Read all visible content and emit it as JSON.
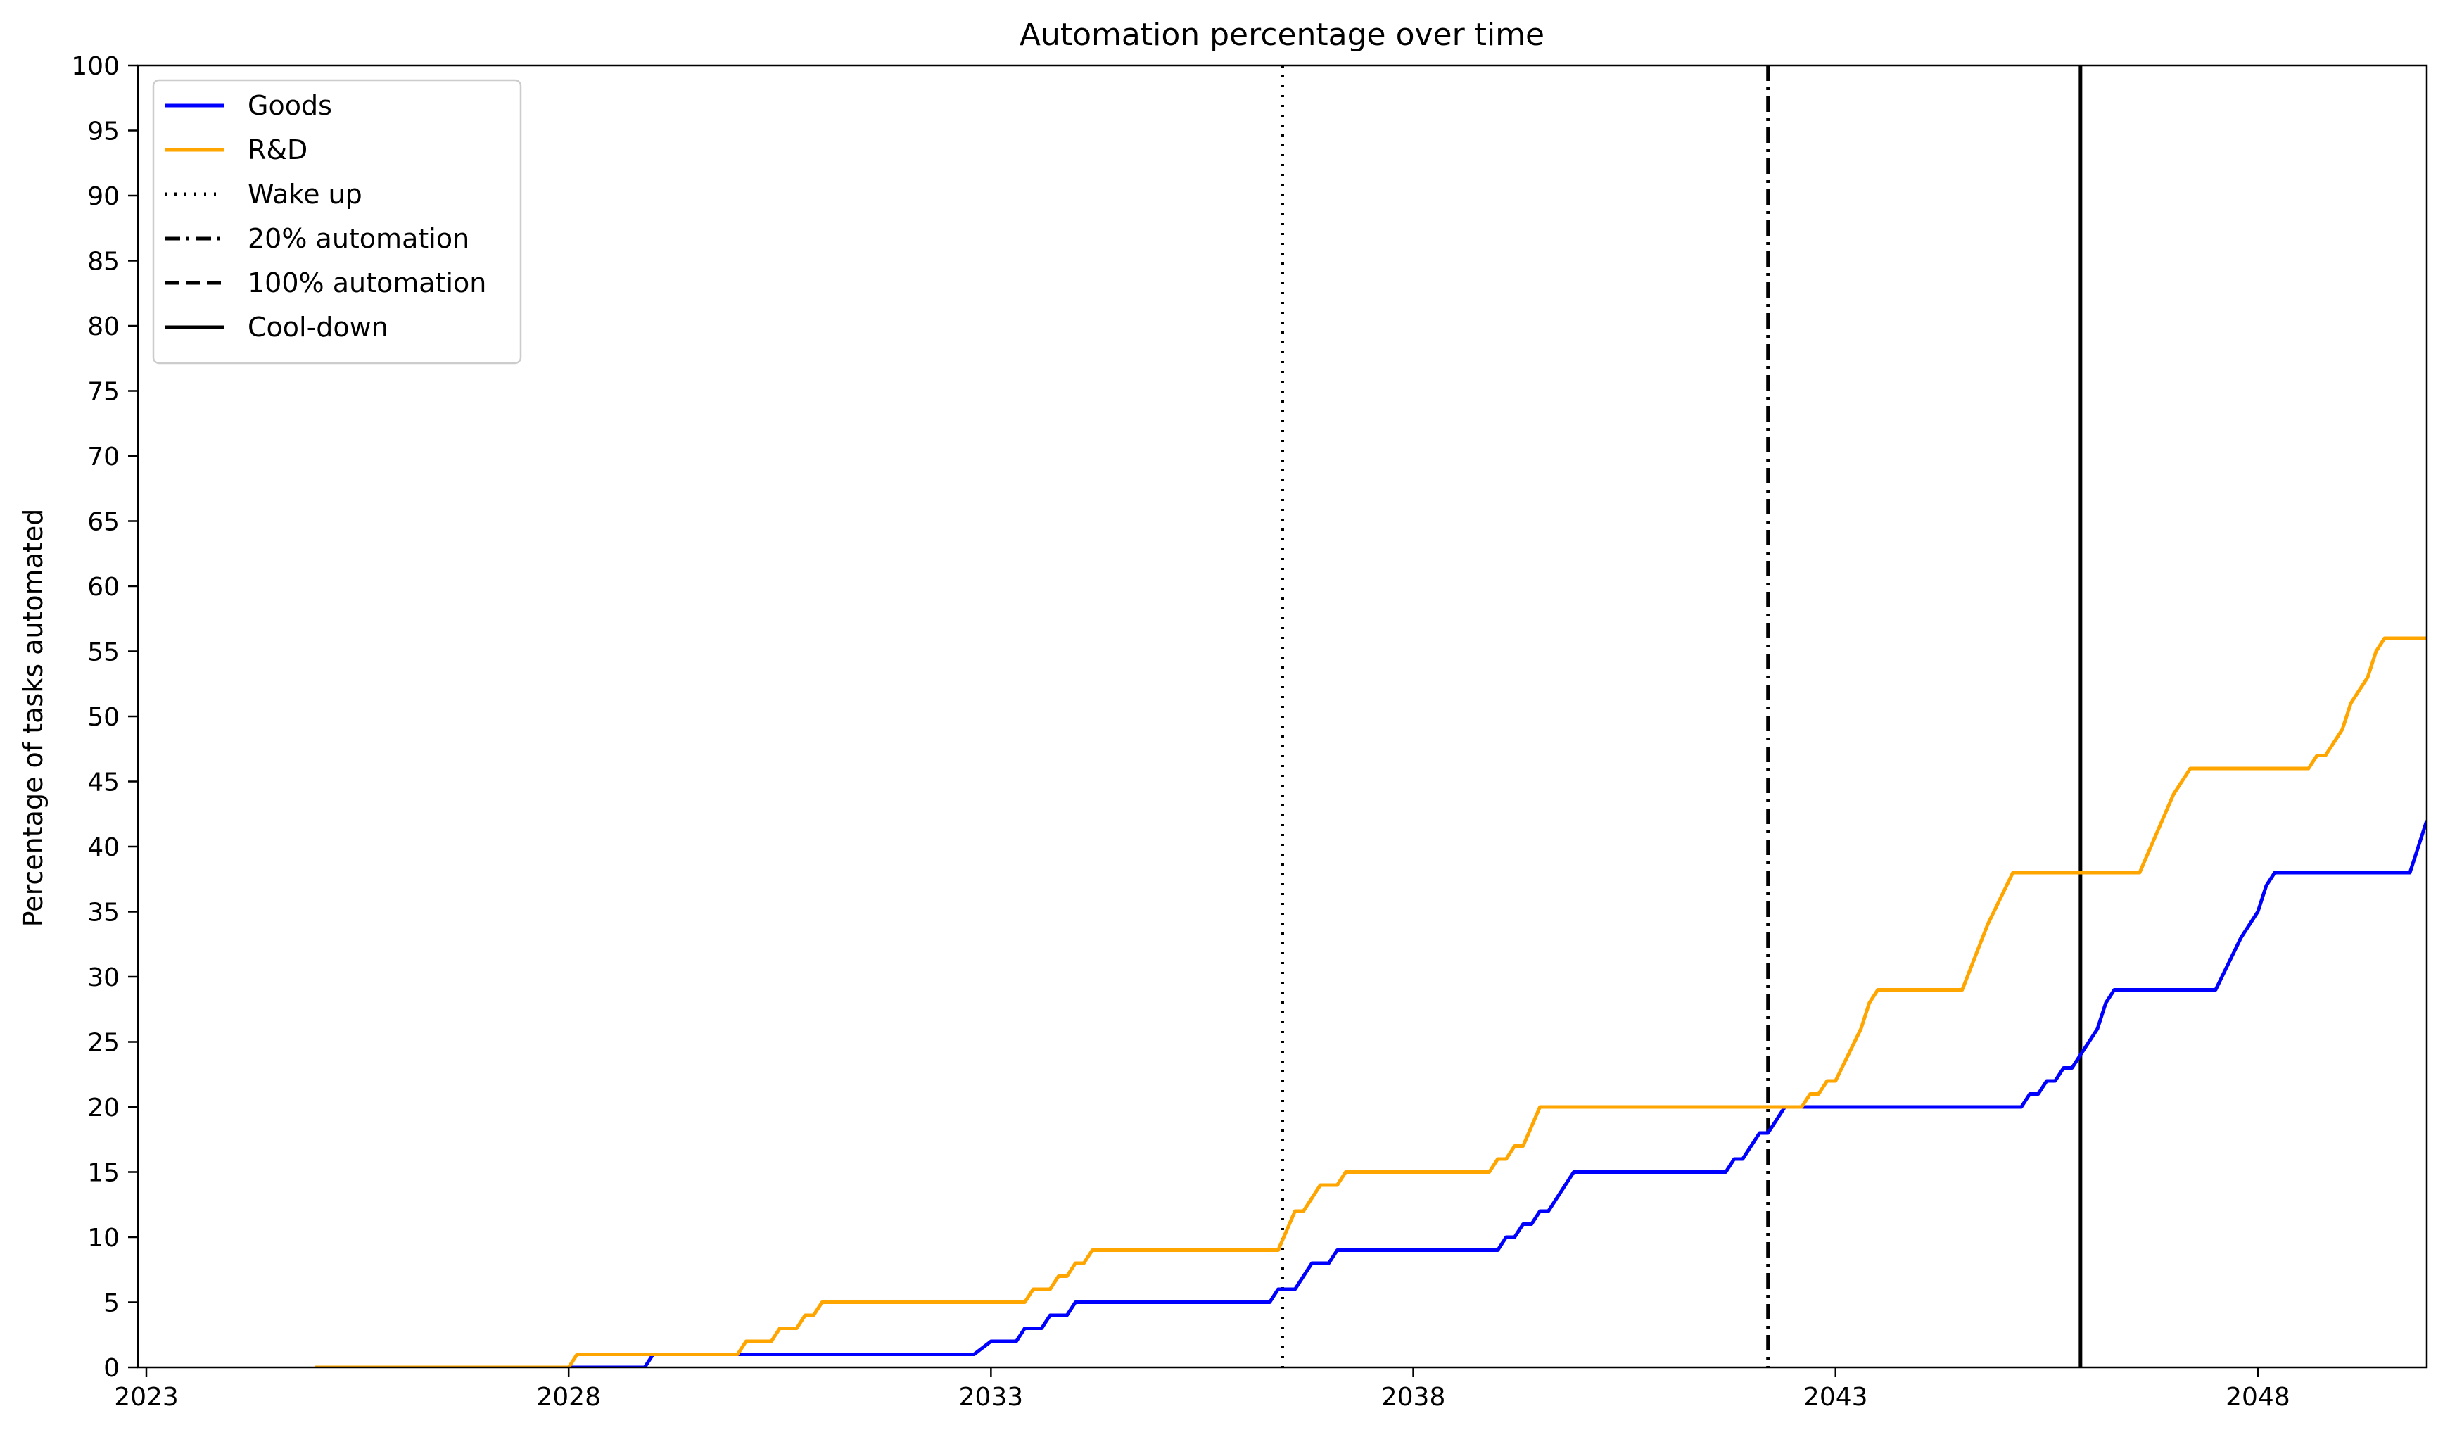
{
  "chart_data": {
    "type": "line",
    "title": "Automation percentage over time",
    "xlabel": "",
    "ylabel": "Percentage of tasks automated",
    "xlim": [
      2022.9,
      2050.0
    ],
    "ylim": [
      0,
      100
    ],
    "x_ticks": [
      "2023",
      "2028",
      "2033",
      "2038",
      "2043",
      "2048"
    ],
    "x_tick_values": [
      2023,
      2028,
      2033,
      2038,
      2043,
      2048
    ],
    "y_ticks": [
      "0",
      "5",
      "10",
      "15",
      "20",
      "25",
      "30",
      "35",
      "40",
      "45",
      "50",
      "55",
      "60",
      "65",
      "70",
      "75",
      "80",
      "85",
      "90",
      "95",
      "100"
    ],
    "y_tick_values": [
      0,
      5,
      10,
      15,
      20,
      25,
      30,
      35,
      40,
      45,
      50,
      55,
      60,
      65,
      70,
      75,
      80,
      85,
      90,
      95,
      100
    ],
    "grid": false,
    "legend_position": "top-left",
    "series": [
      {
        "name": "Goods",
        "color": "#0000ff",
        "style": "solid",
        "x": [
          2028.0,
          2028.9,
          2029.0,
          2030.0,
          2032.8,
          2033.0,
          2033.3,
          2033.4,
          2033.6,
          2033.7,
          2033.9,
          2034.0,
          2036.3,
          2036.4,
          2036.6,
          2036.8,
          2037.0,
          2037.1,
          2039.0,
          2039.1,
          2039.2,
          2039.3,
          2039.4,
          2039.5,
          2039.6,
          2039.7,
          2039.9,
          2040.0,
          2041.7,
          2041.8,
          2041.9,
          2042.1,
          2042.2,
          2042.4,
          2045.2,
          2045.3,
          2045.4,
          2045.5,
          2045.6,
          2045.7,
          2045.8,
          2045.9,
          2046.1,
          2046.2,
          2046.3,
          2047.5,
          2047.8,
          2048.0,
          2048.1,
          2048.2,
          2049.6,
          2049.8,
          2050.0
        ],
        "values": [
          0,
          0,
          1,
          1,
          1,
          2,
          2,
          3,
          3,
          4,
          4,
          5,
          5,
          6,
          6,
          8,
          8,
          9,
          9,
          10,
          10,
          11,
          11,
          12,
          12,
          13,
          15,
          15,
          15,
          16,
          16,
          18,
          18,
          20,
          20,
          21,
          21,
          22,
          22,
          23,
          23,
          24,
          26,
          28,
          29,
          29,
          33,
          35,
          37,
          38,
          38,
          38,
          42
        ]
      },
      {
        "name": "R&D",
        "color": "#ffa500",
        "style": "solid",
        "x": [
          2025.0,
          2028.0,
          2028.1,
          2030.0,
          2030.1,
          2030.4,
          2030.5,
          2030.7,
          2030.8,
          2030.9,
          2031.0,
          2033.4,
          2033.5,
          2033.7,
          2033.8,
          2033.9,
          2034.0,
          2034.1,
          2034.2,
          2034.3,
          2036.4,
          2036.6,
          2036.7,
          2036.8,
          2036.9,
          2037.1,
          2037.2,
          2038.9,
          2039.0,
          2039.1,
          2039.2,
          2039.3,
          2039.5,
          2039.7,
          2042.6,
          2042.7,
          2042.8,
          2042.9,
          2043.0,
          2043.3,
          2043.4,
          2043.5,
          2043.6,
          2044.5,
          2044.8,
          2045.1,
          2046.4,
          2046.6,
          2047.0,
          2047.2,
          2048.6,
          2048.7,
          2048.8,
          2049.0,
          2049.1,
          2049.3,
          2049.4,
          2049.5,
          2050.0
        ],
        "values": [
          0,
          0,
          1,
          1,
          2,
          2,
          3,
          3,
          4,
          4,
          5,
          5,
          6,
          6,
          7,
          7,
          8,
          8,
          9,
          9,
          9,
          12,
          12,
          13,
          14,
          14,
          15,
          15,
          16,
          16,
          17,
          17,
          20,
          20,
          20,
          21,
          21,
          22,
          22,
          26,
          28,
          29,
          29,
          29,
          34,
          38,
          38,
          38,
          44,
          46,
          46,
          47,
          47,
          49,
          51,
          53,
          55,
          56,
          56
        ]
      }
    ],
    "vlines": [
      {
        "name": "Wake up",
        "x": 2036.45,
        "style": "dotted",
        "color": "#000000"
      },
      {
        "name": "20% automation",
        "x": 2042.2,
        "style": "dashdot",
        "color": "#000000"
      },
      {
        "name": "100% automation",
        "x": null,
        "style": "dashed",
        "color": "#000000"
      },
      {
        "name": "Cool-down",
        "x": 2045.9,
        "style": "solid",
        "color": "#000000"
      }
    ]
  }
}
